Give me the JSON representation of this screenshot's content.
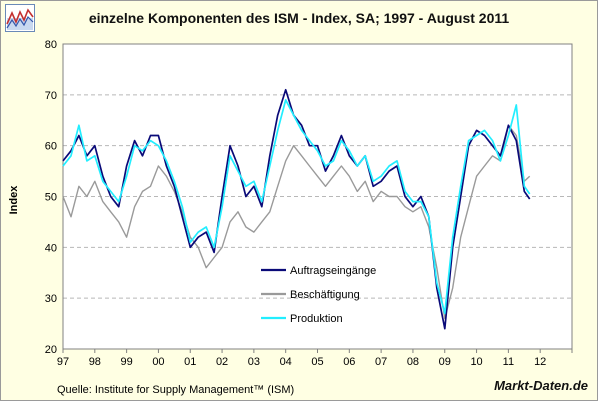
{
  "header": {
    "title": "einzelne Komponenten des ISM - Index, SA; 1997 - August 2011"
  },
  "footer": {
    "source": "Quelle: Institute for Supply Management™ (ISM)",
    "brand": "Markt-Daten.de"
  },
  "colors": {
    "background": "#ffffe3",
    "plot_background": "#ffffff",
    "grid": "#b8b8b8",
    "auftrag": "#0a0a78",
    "beschaeftigung": "#9a9a9a",
    "produktion": "#22eeff"
  },
  "chart_data": {
    "type": "line",
    "title": "einzelne Komponenten des ISM - Index, SA; 1997 - August 2011",
    "xlabel": "",
    "ylabel": "Index",
    "xlim": [
      1997,
      2013
    ],
    "ylim": [
      20,
      80
    ],
    "yticks": [
      20,
      30,
      40,
      50,
      60,
      70,
      80
    ],
    "xtick_labels": [
      "97",
      "98",
      "99",
      "00",
      "01",
      "02",
      "03",
      "04",
      "05",
      "06",
      "07",
      "08",
      "09",
      "10",
      "11",
      "12"
    ],
    "grid": "horizontal dashed",
    "legend_position": "inside, lower-middle",
    "series": [
      {
        "name": "Auftragseingänge",
        "x": [
          1997.0,
          1997.25,
          1997.5,
          1997.75,
          1998.0,
          1998.25,
          1998.5,
          1998.75,
          1999.0,
          1999.25,
          1999.5,
          1999.75,
          2000.0,
          2000.25,
          2000.5,
          2000.75,
          2001.0,
          2001.25,
          2001.5,
          2001.75,
          2002.0,
          2002.25,
          2002.5,
          2002.75,
          2003.0,
          2003.25,
          2003.5,
          2003.75,
          2004.0,
          2004.25,
          2004.5,
          2004.75,
          2005.0,
          2005.25,
          2005.5,
          2005.75,
          2006.0,
          2006.25,
          2006.5,
          2006.75,
          2007.0,
          2007.25,
          2007.5,
          2007.75,
          2008.0,
          2008.25,
          2008.5,
          2008.75,
          2009.0,
          2009.25,
          2009.5,
          2009.75,
          2010.0,
          2010.25,
          2010.5,
          2010.75,
          2011.0,
          2011.25,
          2011.5,
          2011.67
        ],
        "values": [
          57,
          59,
          62,
          58,
          60,
          54,
          50,
          48,
          56,
          61,
          58,
          62,
          62,
          56,
          52,
          46,
          40,
          42,
          43,
          39,
          50,
          60,
          56,
          50,
          52,
          48,
          58,
          66,
          71,
          66,
          64,
          60,
          60,
          55,
          58,
          62,
          58,
          56,
          58,
          52,
          53,
          55,
          56,
          50,
          48,
          50,
          46,
          32,
          24,
          40,
          50,
          60,
          63,
          62,
          60,
          58,
          64,
          61,
          51,
          49.5
        ]
      },
      {
        "name": "Beschäftigung",
        "x": [
          1997.0,
          1997.25,
          1997.5,
          1997.75,
          1998.0,
          1998.25,
          1998.5,
          1998.75,
          1999.0,
          1999.25,
          1999.5,
          1999.75,
          2000.0,
          2000.25,
          2000.5,
          2000.75,
          2001.0,
          2001.25,
          2001.5,
          2001.75,
          2002.0,
          2002.25,
          2002.5,
          2002.75,
          2003.0,
          2003.25,
          2003.5,
          2003.75,
          2004.0,
          2004.25,
          2004.5,
          2004.75,
          2005.0,
          2005.25,
          2005.5,
          2005.75,
          2006.0,
          2006.25,
          2006.5,
          2006.75,
          2007.0,
          2007.25,
          2007.5,
          2007.75,
          2008.0,
          2008.25,
          2008.5,
          2008.75,
          2009.0,
          2009.25,
          2009.5,
          2009.75,
          2010.0,
          2010.25,
          2010.5,
          2010.75,
          2011.0,
          2011.25,
          2011.5,
          2011.67
        ],
        "values": [
          50,
          46,
          52,
          50,
          53,
          49,
          47,
          45,
          42,
          48,
          51,
          52,
          56,
          54,
          51,
          47,
          42,
          40,
          36,
          38,
          40,
          45,
          47,
          44,
          43,
          45,
          47,
          52,
          57,
          60,
          58,
          56,
          54,
          52,
          54,
          56,
          54,
          51,
          53,
          49,
          51,
          50,
          50,
          48,
          47,
          48,
          44,
          36,
          26,
          32,
          42,
          48,
          54,
          56,
          58,
          57,
          64,
          62,
          53,
          54
        ]
      },
      {
        "name": "Produktion",
        "x": [
          1997.0,
          1997.25,
          1997.5,
          1997.75,
          1998.0,
          1998.25,
          1998.5,
          1998.75,
          1999.0,
          1999.25,
          1999.5,
          1999.75,
          2000.0,
          2000.25,
          2000.5,
          2000.75,
          2001.0,
          2001.25,
          2001.5,
          2001.75,
          2002.0,
          2002.25,
          2002.5,
          2002.75,
          2003.0,
          2003.25,
          2003.5,
          2003.75,
          2004.0,
          2004.25,
          2004.5,
          2004.75,
          2005.0,
          2005.25,
          2005.5,
          2005.75,
          2006.0,
          2006.25,
          2006.5,
          2006.75,
          2007.0,
          2007.25,
          2007.5,
          2007.75,
          2008.0,
          2008.25,
          2008.5,
          2008.75,
          2009.0,
          2009.25,
          2009.5,
          2009.75,
          2010.0,
          2010.25,
          2010.5,
          2010.75,
          2011.0,
          2011.25,
          2011.5,
          2011.67
        ],
        "values": [
          56,
          58,
          64,
          57,
          58,
          53,
          51,
          49,
          54,
          60,
          59,
          61,
          60,
          57,
          53,
          48,
          41,
          43,
          44,
          40,
          48,
          58,
          55,
          52,
          53,
          49,
          56,
          63,
          69,
          66,
          63,
          61,
          59,
          56,
          57,
          61,
          59,
          56,
          58,
          53,
          54,
          56,
          57,
          51,
          49,
          49,
          46,
          33,
          27,
          42,
          52,
          61,
          62,
          63,
          61,
          57,
          62,
          68,
          52,
          50.5
        ]
      }
    ]
  }
}
